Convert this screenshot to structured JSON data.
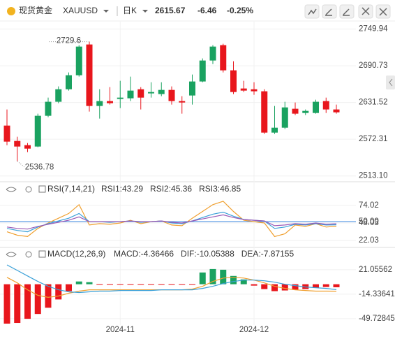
{
  "header": {
    "name": "现货黄金",
    "symbol": "XAUUSD",
    "period": "日K",
    "price": 2615.67,
    "change": -6.46,
    "change_pct": "-0.25%",
    "change_color": "#1aa260",
    "name_color": "#e59a00"
  },
  "chart_data": [
    {
      "type": "candlestick",
      "categories": [
        null,
        null,
        null,
        null,
        null,
        null,
        null,
        null,
        null,
        null,
        null,
        "2024-11",
        null,
        null,
        null,
        null,
        null,
        null,
        null,
        null,
        null,
        null,
        null,
        null,
        "2024-12",
        null,
        null,
        null,
        null,
        null,
        null,
        null,
        null
      ],
      "open": [
        2594.3,
        2569.5,
        2562.7,
        2560.5,
        2610.1,
        2632.7,
        2652.9,
        2675.5,
        2725.1,
        2625.9,
        2633.8,
        2637.2,
        2638.3,
        2652.9,
        2646.2,
        2645.1,
        2651.8,
        2633.8,
        2642.8,
        2665.4,
        2699.2,
        2724,
        2683.4,
        2654.1,
        2652.9,
        2649.6,
        2583,
        2590.9,
        2621.4,
        2614.6,
        2614.6,
        2633.8,
        2620.3
      ],
      "high": [
        2620.3,
        2576.3,
        2566.1,
        2613.5,
        2639.4,
        2657.5,
        2680,
        2724,
        2729.6,
        2652.9,
        2656.3,
        2666.5,
        2673.3,
        2656.3,
        2664.2,
        2664.2,
        2657.5,
        2641.7,
        2676.6,
        2702.6,
        2724,
        2726.26,
        2698.1,
        2666.5,
        2664.2,
        2652.9,
        2625.9,
        2632.7,
        2631.5,
        2620.3,
        2636,
        2639.4,
        2628.2
      ],
      "low": [
        2562.7,
        2536.78,
        2551.5,
        2559.4,
        2607.8,
        2630.4,
        2650.7,
        2673.3,
        2616.9,
        2605.6,
        2628.2,
        2622.5,
        2633.8,
        2620.3,
        2639.4,
        2641.7,
        2628.2,
        2613.5,
        2628.2,
        2664.2,
        2693.6,
        2680,
        2645.1,
        2648.4,
        2643.9,
        2580.8,
        2580.8,
        2588.7,
        2611.2,
        2611.2,
        2613.5,
        2614.6,
        2613.5
      ],
      "close": [
        2568.4,
        2560.5,
        2557.1,
        2610.1,
        2632.7,
        2652.9,
        2675.5,
        2721.7,
        2625.9,
        2633.8,
        2630.4,
        2639.4,
        2650.7,
        2639.4,
        2648.4,
        2651.8,
        2633.8,
        2631.5,
        2665.4,
        2699.2,
        2721.7,
        2683.4,
        2648.4,
        2650.7,
        2649.6,
        2583,
        2590.9,
        2623.6,
        2613.5,
        2618,
        2632.7,
        2620.3,
        2615.67
      ],
      "up_color": "#1aa260",
      "down_color": "#e8161c",
      "ylim": [
        2506,
        2763
      ],
      "yticks": [
        2749.94,
        2690.73,
        2631.52,
        2572.31,
        {
          "value": 2513.1,
          "label": "2513.10"
        }
      ],
      "grid": true
    },
    {
      "type": "line",
      "title": "RSI(7,14,21)",
      "series": [
        {
          "name": "RSI1:43.29",
          "color": "#f0a030",
          "values": [
            35,
            30,
            28,
            40,
            48,
            55,
            62,
            75,
            45,
            47,
            46,
            48,
            52,
            47,
            50,
            51,
            45,
            44,
            55,
            65,
            75,
            80,
            65,
            52,
            50,
            48,
            28,
            32,
            45,
            43,
            47,
            42,
            43.29
          ]
        },
        {
          "name": "RSI2:45.36",
          "color": "#3aa0d8",
          "values": [
            40,
            37,
            35,
            42,
            47,
            51,
            55,
            62,
            50,
            50,
            49,
            50,
            51,
            49,
            50,
            51,
            48,
            47,
            51,
            56,
            61,
            64,
            58,
            53,
            52,
            51,
            40,
            42,
            46,
            45,
            47,
            45,
            45.36
          ]
        },
        {
          "name": "RSI3:46.85",
          "color": "#9b59b6",
          "values": [
            42,
            40,
            39,
            43,
            46,
            49,
            52,
            57,
            50,
            50,
            50,
            50,
            51,
            50,
            50,
            51,
            49,
            48,
            51,
            54,
            57,
            60,
            56,
            53,
            52,
            51,
            44,
            45,
            47,
            46,
            48,
            46,
            46.85
          ]
        }
      ],
      "ylim": [
        14,
        82
      ],
      "yticks": [
        74.02,
        {
          "value": 50,
          "label": "50.00"
        },
        48.03,
        22.03
      ],
      "reference_lines": [
        {
          "value": 50,
          "color": "#4a90e2"
        }
      ]
    },
    {
      "type": "macd",
      "title": "MACD(12,26,9)",
      "series": [
        {
          "name": "MACD:-4.36466",
          "color": "#c45cc4",
          "kind": "bar",
          "up_color": "#1aa260",
          "down_color": "#e8161c",
          "values": [
            -57,
            -56,
            -50,
            -43,
            -34,
            -22,
            -10,
            4,
            3,
            -1,
            -1,
            -1,
            -1,
            -1,
            -1,
            -1,
            -1,
            -1,
            -1,
            17,
            22,
            21,
            12,
            7,
            -2,
            -7,
            -10,
            -9,
            -8,
            -7,
            -5,
            -4,
            -4.36466
          ]
        },
        {
          "name": "DIF:-10.05388",
          "color": "#f0a030",
          "kind": "line",
          "values": [
            10,
            2,
            -8,
            -16,
            -19,
            -17,
            -13,
            -10,
            -8,
            -8,
            -8,
            -8,
            -8,
            -8,
            -8,
            -8,
            -8,
            -8,
            -7,
            -3,
            4,
            9,
            10,
            9,
            6,
            2,
            -3,
            -6,
            -8,
            -9,
            -10,
            -10,
            -10.05388
          ]
        },
        {
          "name": "DEA:-7.87155",
          "color": "#3aa0d8",
          "kind": "line",
          "values": [
            28,
            20,
            12,
            4,
            -3,
            -8,
            -11,
            -12,
            -11,
            -10,
            -10,
            -9,
            -9,
            -9,
            -9,
            -8,
            -8,
            -8,
            -8,
            -6,
            -3,
            1,
            4,
            6,
            6,
            5,
            3,
            0,
            -2,
            -4,
            -5,
            -6,
            -7.87155
          ]
        }
      ],
      "ylim": [
        -59,
        31
      ],
      "yticks": [
        21.05562,
        -14.33641,
        -49.72845
      ]
    }
  ]
}
